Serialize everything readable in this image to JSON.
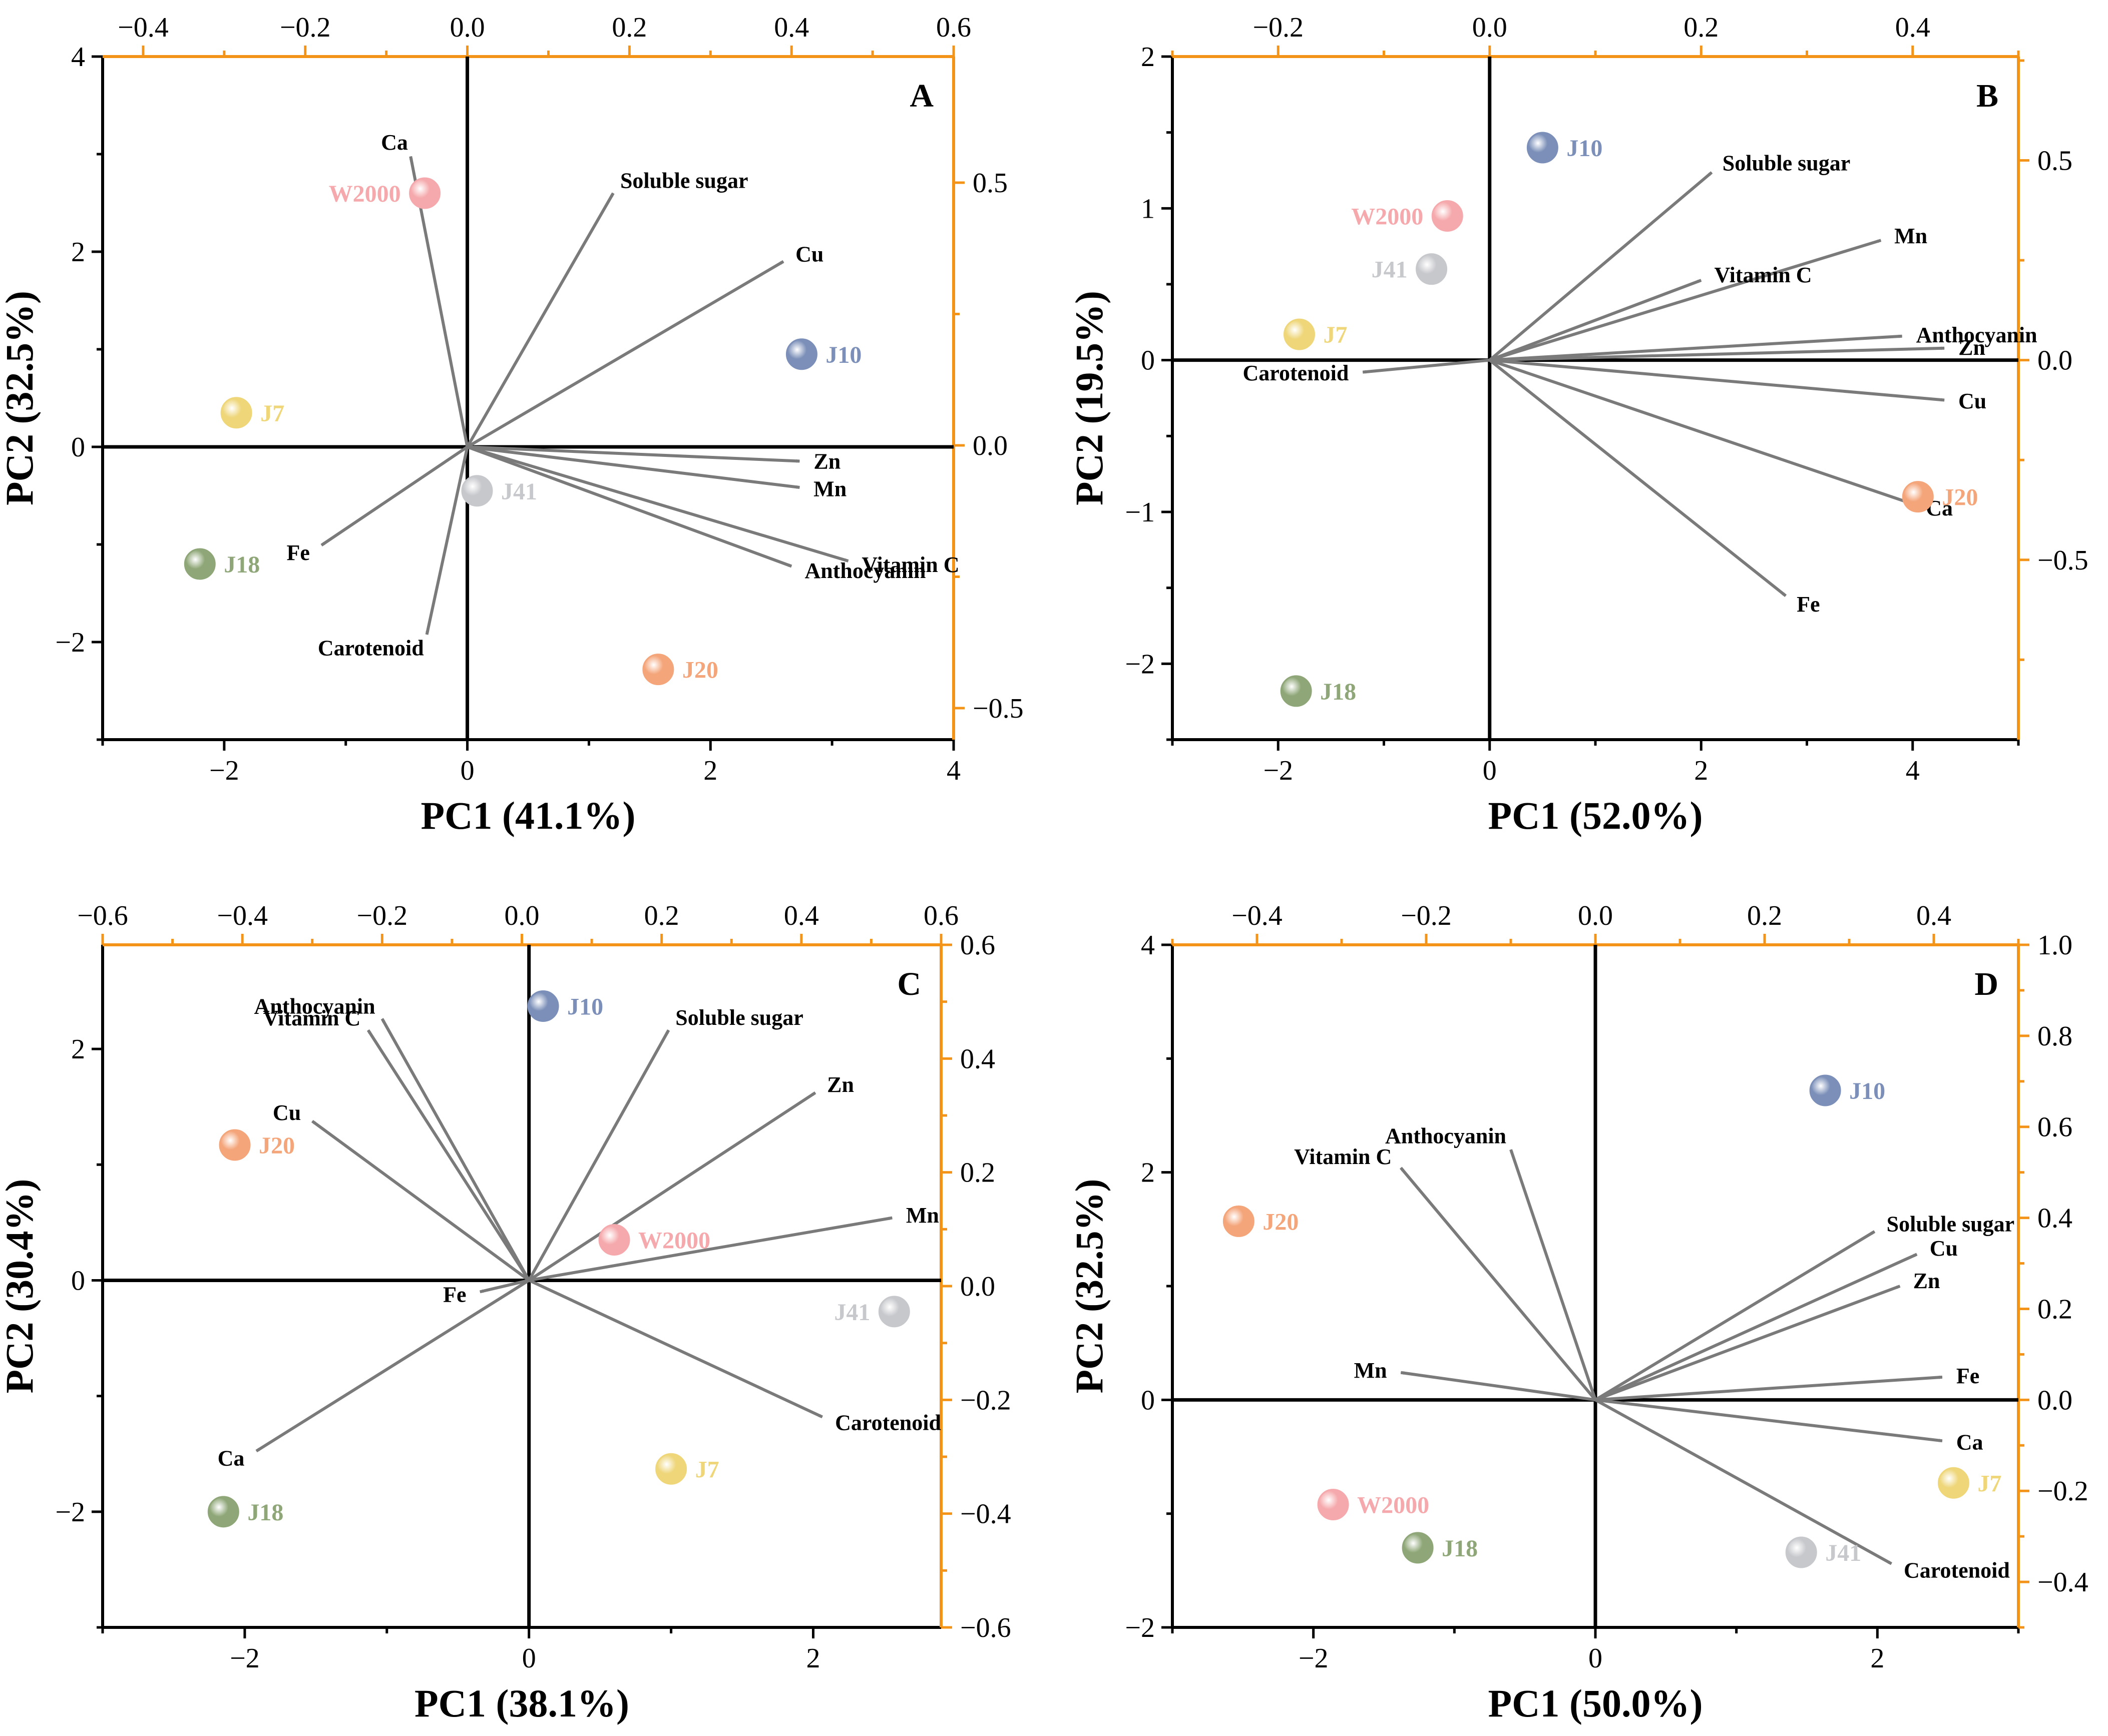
{
  "chart_data": [
    {
      "type": "scatter",
      "panel": "A",
      "xlabel": "PC1 (41.1%)",
      "ylabel": "PC2 (32.5%)",
      "xlim": [
        -3,
        4
      ],
      "ylim": [
        -3,
        4
      ],
      "x_ticks": [
        -2,
        0,
        2,
        4
      ],
      "y_ticks": [
        -2,
        0,
        2,
        4
      ],
      "top_lim": [
        -0.45,
        0.6
      ],
      "top_ticks": [
        -0.4,
        -0.2,
        0.0,
        0.2,
        0.4,
        0.6
      ],
      "right_lim": [
        -0.56,
        0.74
      ],
      "right_ticks": [
        -0.5,
        0.0,
        0.5
      ],
      "samples": [
        {
          "name": "W2000",
          "x": -0.35,
          "y": 2.6,
          "color": "#f5a9ac"
        },
        {
          "name": "J10",
          "x": 2.75,
          "y": 0.95,
          "color": "#7b8fb8"
        },
        {
          "name": "J7",
          "x": -1.9,
          "y": 0.35,
          "color": "#eed679"
        },
        {
          "name": "J41",
          "x": 0.08,
          "y": -0.45,
          "color": "#c7c8cc"
        },
        {
          "name": "J18",
          "x": -2.2,
          "y": -1.2,
          "color": "#8fa778"
        },
        {
          "name": "J20",
          "x": 1.57,
          "y": -2.28,
          "color": "#f4a57a"
        }
      ],
      "loadings": [
        {
          "name": "Ca",
          "x": -0.07,
          "y": 0.55
        },
        {
          "name": "Soluble sugar",
          "x": 0.18,
          "y": 0.48
        },
        {
          "name": "Cu",
          "x": 0.39,
          "y": 0.35
        },
        {
          "name": "Zn",
          "x": 0.41,
          "y": -0.03
        },
        {
          "name": "Mn",
          "x": 0.41,
          "y": -0.08
        },
        {
          "name": "Vitamin C",
          "x": 0.47,
          "y": -0.22
        },
        {
          "name": "Anthocyanin",
          "x": 0.4,
          "y": -0.23
        },
        {
          "name": "Fe",
          "x": -0.18,
          "y": -0.19
        },
        {
          "name": "Carotenoid",
          "x": -0.05,
          "y": -0.36
        }
      ]
    },
    {
      "type": "scatter",
      "panel": "B",
      "xlabel": "PC1 (52.0%)",
      "ylabel": "PC2 (19.5%)",
      "xlim": [
        -3,
        5
      ],
      "ylim": [
        -2.5,
        2
      ],
      "x_ticks": [
        -2,
        0,
        2,
        4
      ],
      "y_ticks": [
        -2,
        -1,
        0,
        1,
        2
      ],
      "top_lim": [
        -0.3,
        0.5
      ],
      "top_ticks": [
        -0.2,
        0.0,
        0.2,
        0.4
      ],
      "right_lim": [
        -0.95,
        0.76
      ],
      "right_ticks": [
        -0.5,
        0.0,
        0.5
      ],
      "samples": [
        {
          "name": "J10",
          "x": 0.5,
          "y": 1.4,
          "color": "#7b8fb8"
        },
        {
          "name": "W2000",
          "x": -0.4,
          "y": 0.95,
          "color": "#f5a9ac"
        },
        {
          "name": "J41",
          "x": -0.55,
          "y": 0.6,
          "color": "#c7c8cc"
        },
        {
          "name": "J7",
          "x": -1.8,
          "y": 0.17,
          "color": "#eed679"
        },
        {
          "name": "J20",
          "x": 4.05,
          "y": -0.9,
          "color": "#f4a57a"
        },
        {
          "name": "J18",
          "x": -1.83,
          "y": -2.18,
          "color": "#8fa778"
        }
      ],
      "loadings": [
        {
          "name": "Soluble sugar",
          "x": 0.21,
          "y": 0.47
        },
        {
          "name": "Mn",
          "x": 0.37,
          "y": 0.3
        },
        {
          "name": "Vitamin C",
          "x": 0.2,
          "y": 0.2
        },
        {
          "name": "Anthocyanin",
          "x": 0.39,
          "y": 0.06
        },
        {
          "name": "Zn",
          "x": 0.43,
          "y": 0.03
        },
        {
          "name": "Carotenoid",
          "x": -0.12,
          "y": -0.03
        },
        {
          "name": "Cu",
          "x": 0.43,
          "y": -0.1
        },
        {
          "name": "Ca",
          "x": 0.4,
          "y": -0.36
        },
        {
          "name": "Fe",
          "x": 0.28,
          "y": -0.59
        }
      ]
    },
    {
      "type": "scatter",
      "panel": "C",
      "xlabel": "PC1 (38.1%)",
      "ylabel": "PC2 (30.4%)",
      "xlim": [
        -3,
        2.9
      ],
      "ylim": [
        -3,
        2.9
      ],
      "x_ticks": [
        -2,
        0,
        2
      ],
      "y_ticks": [
        -2,
        0,
        2
      ],
      "top_lim": [
        -0.6,
        0.6
      ],
      "top_ticks": [
        -0.6,
        -0.4,
        -0.2,
        0.0,
        0.2,
        0.4,
        0.6
      ],
      "right_lim": [
        -0.6,
        0.6
      ],
      "right_ticks": [
        -0.6,
        -0.4,
        -0.2,
        0.0,
        0.2,
        0.4,
        0.6
      ],
      "samples": [
        {
          "name": "J10",
          "x": 0.1,
          "y": 2.37,
          "color": "#7b8fb8"
        },
        {
          "name": "J20",
          "x": -2.07,
          "y": 1.17,
          "color": "#f4a57a"
        },
        {
          "name": "W2000",
          "x": 0.6,
          "y": 0.35,
          "color": "#f5a9ac"
        },
        {
          "name": "J41",
          "x": 2.57,
          "y": -0.27,
          "color": "#c7c8cc"
        },
        {
          "name": "J7",
          "x": 1.0,
          "y": -1.63,
          "color": "#eed679"
        },
        {
          "name": "J18",
          "x": -2.15,
          "y": -2.0,
          "color": "#8fa778"
        }
      ],
      "loadings": [
        {
          "name": "Anthocyanin",
          "x": -0.2,
          "y": 0.47
        },
        {
          "name": "Vitamin C",
          "x": -0.22,
          "y": 0.45
        },
        {
          "name": "Soluble sugar",
          "x": 0.21,
          "y": 0.45
        },
        {
          "name": "Cu",
          "x": -0.3,
          "y": 0.29
        },
        {
          "name": "Zn",
          "x": 0.42,
          "y": 0.34
        },
        {
          "name": "Mn",
          "x": 0.53,
          "y": 0.12
        },
        {
          "name": "Fe",
          "x": -0.06,
          "y": -0.01
        },
        {
          "name": "Carotenoid",
          "x": 0.43,
          "y": -0.23
        },
        {
          "name": "Ca",
          "x": -0.38,
          "y": -0.29
        }
      ]
    },
    {
      "type": "scatter",
      "panel": "D",
      "xlabel": "PC1 (50.0%)",
      "ylabel": "PC2 (32.5%)",
      "xlim": [
        -3,
        3
      ],
      "ylim": [
        -2,
        4
      ],
      "x_ticks": [
        -2,
        0,
        2
      ],
      "y_ticks": [
        -2,
        0,
        2,
        4
      ],
      "top_lim": [
        -0.5,
        0.5
      ],
      "top_ticks": [
        -0.4,
        -0.2,
        0.0,
        0.2,
        0.4
      ],
      "right_lim": [
        -0.5,
        1.0
      ],
      "right_ticks": [
        -0.4,
        -0.2,
        0.0,
        0.2,
        0.4,
        0.6,
        0.8,
        1.0
      ],
      "samples": [
        {
          "name": "J10",
          "x": 1.63,
          "y": 2.72,
          "color": "#7b8fb8"
        },
        {
          "name": "J20",
          "x": -2.53,
          "y": 1.57,
          "color": "#f4a57a"
        },
        {
          "name": "J7",
          "x": 2.54,
          "y": -0.73,
          "color": "#eed679"
        },
        {
          "name": "W2000",
          "x": -1.86,
          "y": -0.92,
          "color": "#f5a9ac"
        },
        {
          "name": "J18",
          "x": -1.26,
          "y": -1.3,
          "color": "#8fa778"
        },
        {
          "name": "J41",
          "x": 1.46,
          "y": -1.34,
          "color": "#c7c8cc"
        }
      ],
      "loadings": [
        {
          "name": "Vitamin C",
          "x": -0.23,
          "y": 0.51
        },
        {
          "name": "Anthocyanin",
          "x": -0.1,
          "y": 0.55
        },
        {
          "name": "Soluble sugar",
          "x": 0.33,
          "y": 0.37
        },
        {
          "name": "Cu",
          "x": 0.38,
          "y": 0.32
        },
        {
          "name": "Zn",
          "x": 0.36,
          "y": 0.25
        },
        {
          "name": "Mn",
          "x": -0.23,
          "y": 0.06
        },
        {
          "name": "Fe",
          "x": 0.41,
          "y": 0.05
        },
        {
          "name": "Ca",
          "x": 0.41,
          "y": -0.09
        },
        {
          "name": "Carotenoid",
          "x": 0.35,
          "y": -0.36
        }
      ]
    }
  ]
}
